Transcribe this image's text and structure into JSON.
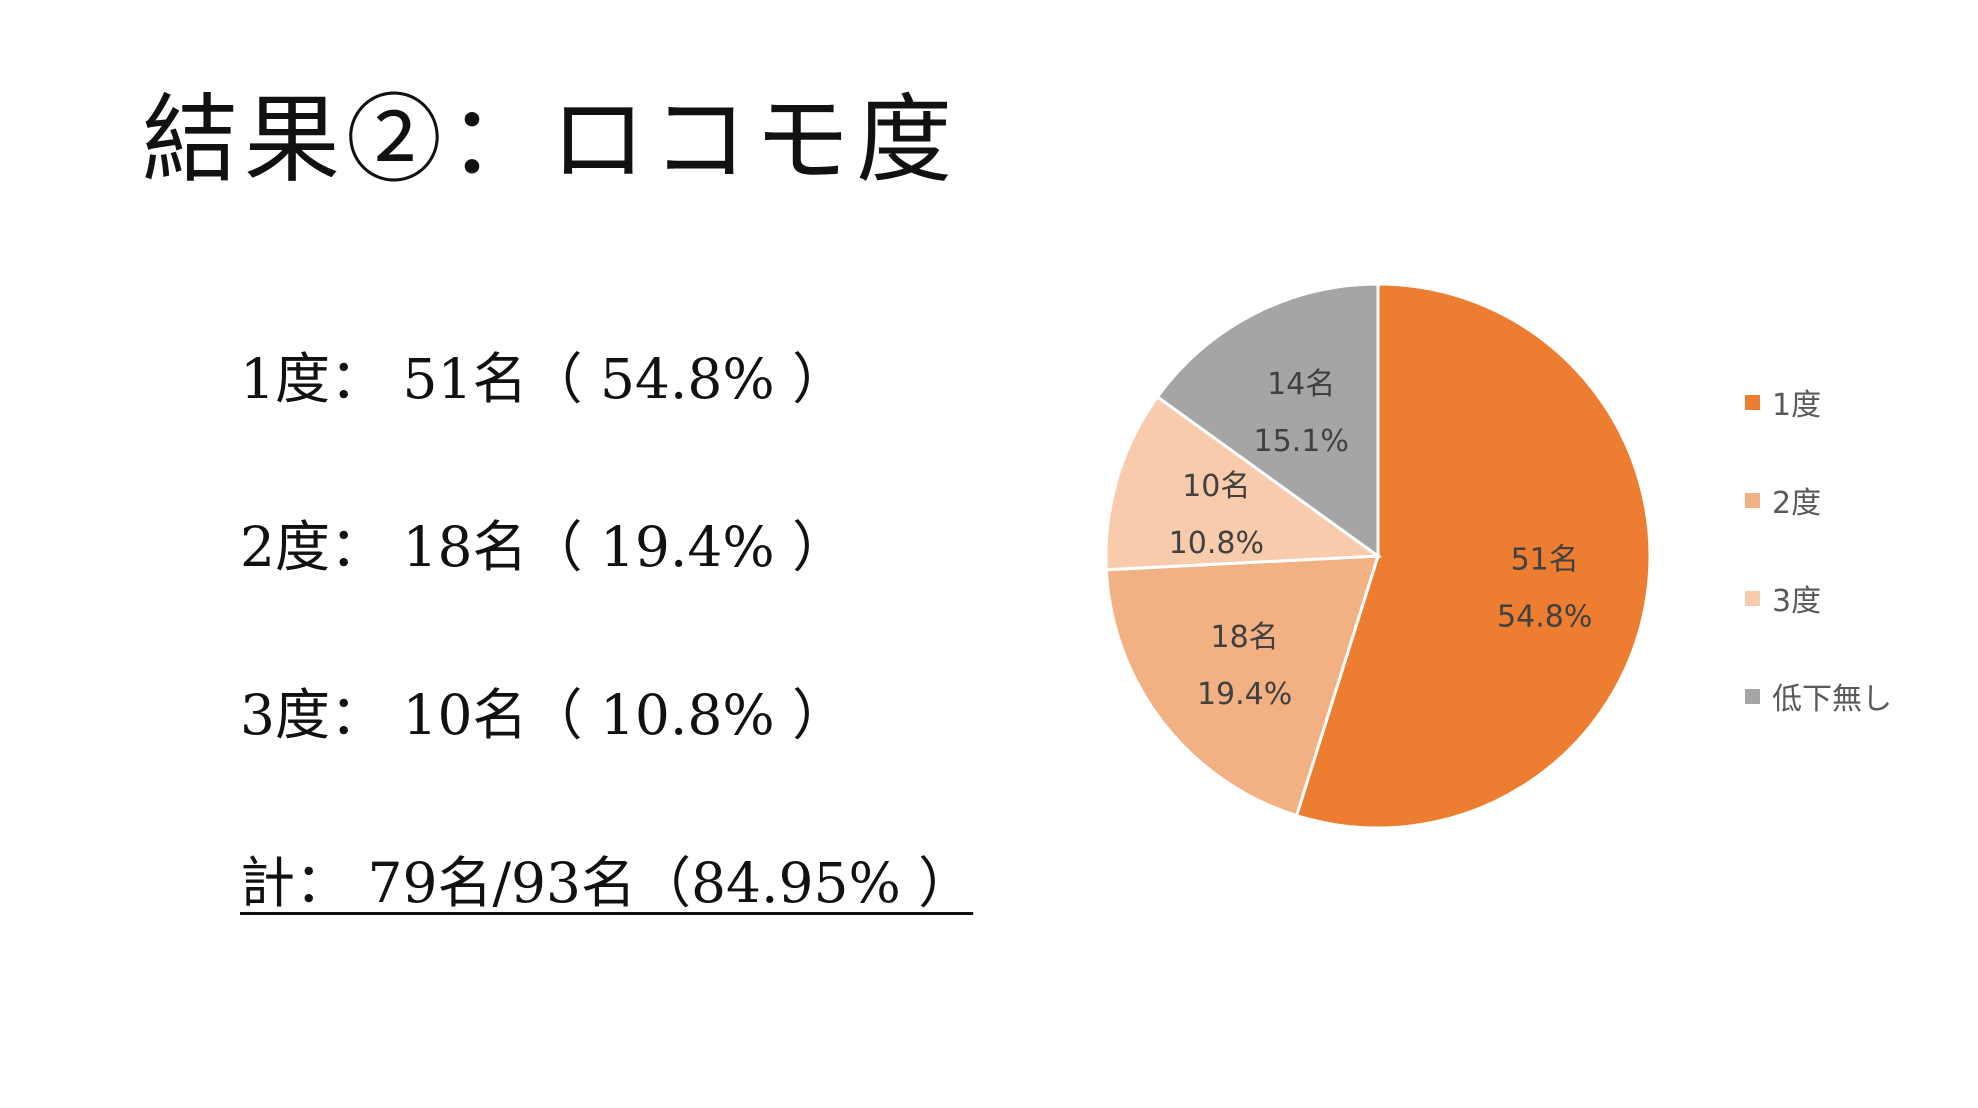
{
  "slide": {
    "title": "結果②：ロコモ度"
  },
  "stats": {
    "lines": [
      "1度： 51名（ 54.8% ）",
      "2度： 18名（ 19.4% ）",
      "3度： 10名（ 10.8% ）"
    ],
    "total": "計： 79名/93名（84.95% ）"
  },
  "chart_data": {
    "type": "pie",
    "categories": [
      "1度",
      "2度",
      "3度",
      "低下無し"
    ],
    "values": [
      51,
      18,
      10,
      14
    ],
    "value_labels": [
      "51名",
      "18名",
      "10名",
      "14名"
    ],
    "percent_labels": [
      "54.8%",
      "19.4%",
      "10.8%",
      "15.1%"
    ],
    "colors": [
      "#ED7D31",
      "#F2B183",
      "#F8CBAD",
      "#A5A5A5"
    ],
    "start_angle_deg": 0,
    "direction": "clockwise",
    "legend_position": "right"
  }
}
